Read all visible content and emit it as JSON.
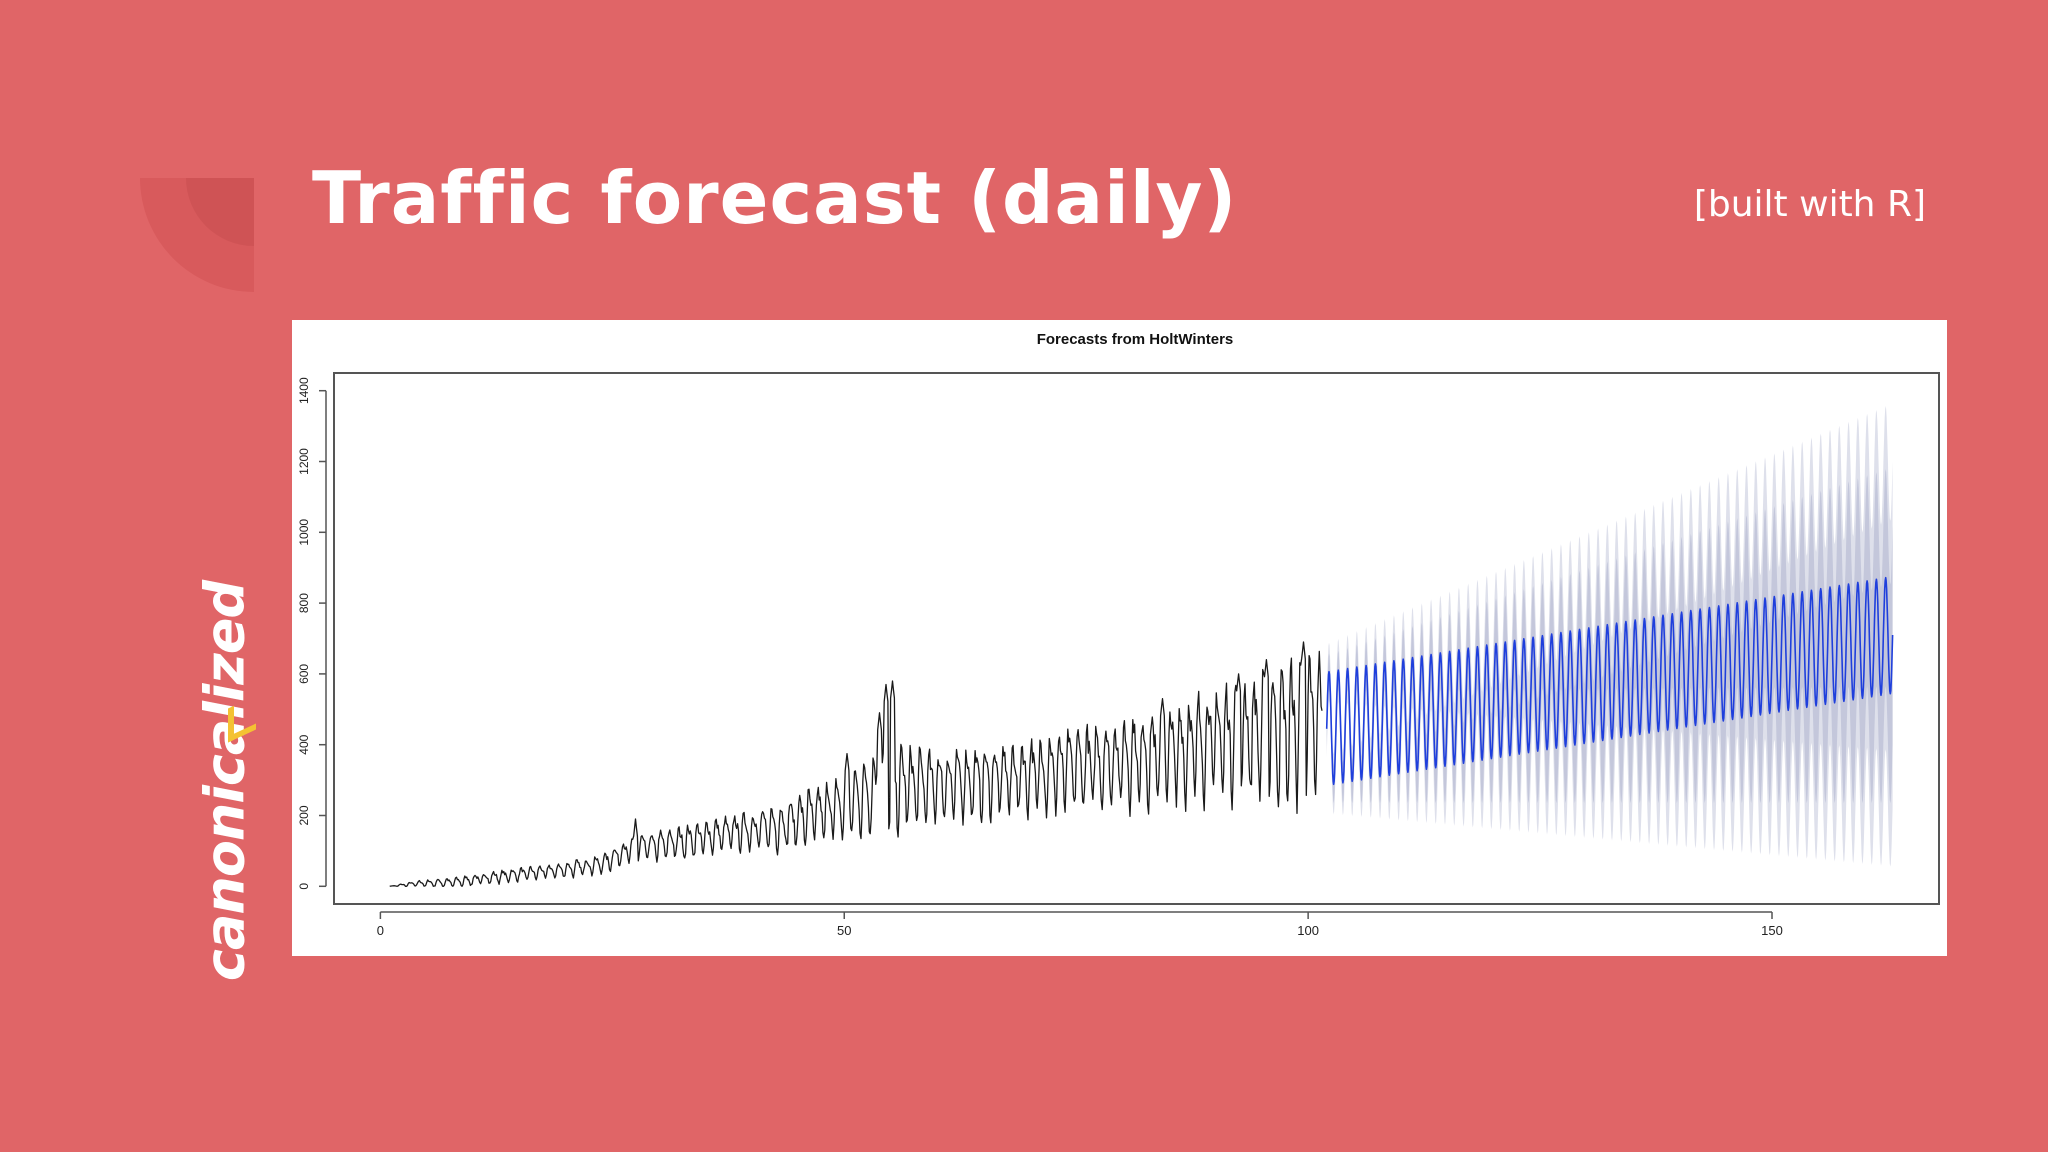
{
  "slide": {
    "title": "Traffic forecast (daily)",
    "note": "[built with R]",
    "brand": "canonicalized",
    "background_color": "#e06567",
    "accent_color": "#f4c233"
  },
  "chart_data": {
    "type": "line",
    "title": "Forecasts from HoltWinters",
    "xlabel": "",
    "ylabel": "",
    "xlim": [
      -5,
      168
    ],
    "ylim": [
      -50,
      1450
    ],
    "x_ticks": [
      0,
      50,
      100,
      150
    ],
    "y_ticks": [
      0,
      200,
      400,
      600,
      800,
      1000,
      1200,
      1400
    ],
    "grid": false,
    "period": 1,
    "observed": {
      "x_start": 1,
      "x_end": 101.5,
      "trend_points": [
        [
          1,
          0
        ],
        [
          4,
          8
        ],
        [
          8,
          12
        ],
        [
          11,
          22
        ],
        [
          15,
          35
        ],
        [
          20,
          48
        ],
        [
          24,
          65
        ],
        [
          26,
          95
        ],
        [
          28,
          110
        ],
        [
          33,
          130
        ],
        [
          38,
          155
        ],
        [
          43,
          170
        ],
        [
          46,
          200
        ],
        [
          50,
          230
        ],
        [
          53,
          270
        ],
        [
          56,
          290
        ],
        [
          60,
          290
        ],
        [
          65,
          300
        ],
        [
          70,
          320
        ],
        [
          75,
          340
        ],
        [
          80,
          360
        ],
        [
          85,
          380
        ],
        [
          90,
          420
        ],
        [
          95,
          440
        ],
        [
          100,
          460
        ],
        [
          101.5,
          470
        ]
      ],
      "amplitude_points": [
        [
          1,
          0
        ],
        [
          4,
          8
        ],
        [
          10,
          15
        ],
        [
          20,
          20
        ],
        [
          26,
          30
        ],
        [
          30,
          40
        ],
        [
          40,
          50
        ],
        [
          45,
          70
        ],
        [
          50,
          90
        ],
        [
          55,
          120
        ],
        [
          60,
          90
        ],
        [
          70,
          100
        ],
        [
          80,
          120
        ],
        [
          85,
          140
        ],
        [
          90,
          150
        ],
        [
          95,
          170
        ],
        [
          100,
          200
        ],
        [
          101.5,
          200
        ]
      ],
      "spikes": [
        {
          "x": 27.5,
          "y": 190
        },
        {
          "x": 50.3,
          "y": 375
        },
        {
          "x": 53.8,
          "y": 490
        },
        {
          "x": 55.2,
          "y": 580
        },
        {
          "x": 54.5,
          "y": 570
        },
        {
          "x": 84.3,
          "y": 530
        },
        {
          "x": 92.5,
          "y": 600
        },
        {
          "x": 95.5,
          "y": 640
        },
        {
          "x": 99.5,
          "y": 690
        }
      ]
    },
    "forecast": {
      "x_start": 102,
      "x_end": 163,
      "color": "#1f3fdc",
      "start_mean": 445,
      "end_mean": 710,
      "start_amplitude": 160,
      "end_amplitude": 165,
      "interval_80": {
        "start_halfwidth": 50,
        "end_halfwidth": 310
      },
      "interval_95": {
        "start_halfwidth": 80,
        "end_halfwidth": 490
      },
      "interval_color": "#b6bad2"
    }
  }
}
